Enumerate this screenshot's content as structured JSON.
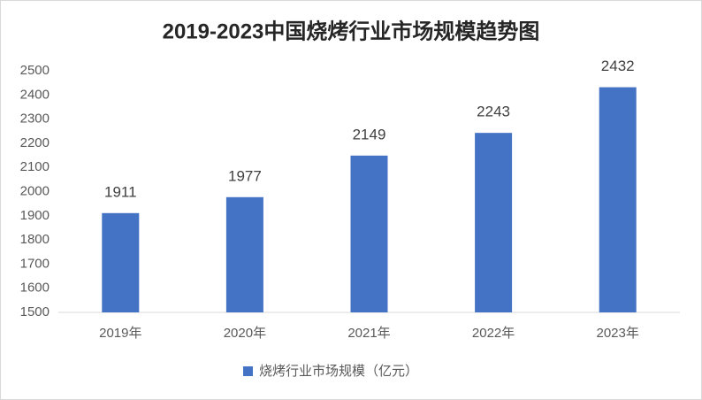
{
  "chart_data": {
    "type": "bar",
    "title": "2019-2023中国烧烤行业市场规模趋势图",
    "categories": [
      "2019年",
      "2020年",
      "2021年",
      "2022年",
      "2023年"
    ],
    "series": [
      {
        "name": "烧烤行业市场规模（亿元）",
        "color": "#4472c4",
        "values": [
          1911,
          1977,
          2149,
          2243,
          2432
        ]
      }
    ],
    "ylim": [
      1500,
      2500
    ],
    "yticks": [
      1500,
      1600,
      1700,
      1800,
      1900,
      2000,
      2100,
      2200,
      2300,
      2400,
      2500
    ],
    "grid": false,
    "legend": "bottom"
  }
}
